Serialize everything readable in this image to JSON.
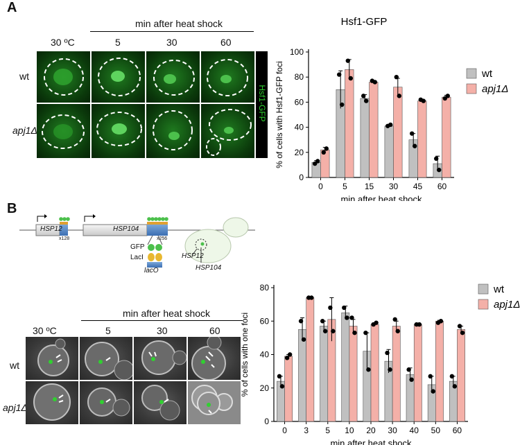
{
  "panelA": {
    "letter": "A",
    "header": "min after heat shock",
    "cols": [
      "30 ºC",
      "5",
      "30",
      "60"
    ],
    "rows": [
      "wt",
      "apj1Δ"
    ],
    "channel": "Hsf1-GFP",
    "colors": {
      "wt": "#c0c0c0",
      "apj1": "#f4b0a8"
    }
  },
  "panelB": {
    "letter": "B",
    "header": "min after heat shock",
    "cols": [
      "30 ºC",
      "5",
      "30",
      "60"
    ],
    "rows": [
      "wt",
      "apj1Δ"
    ],
    "schematic": {
      "gene1": "HSP12",
      "gene1_count": "x128",
      "gene2": "HSP104",
      "gene2_count": "x256",
      "gfp": "GFP",
      "laci": "LacI",
      "laco": "lacO",
      "cell_label1": "HSP12",
      "cell_label2": "HSP104"
    }
  },
  "chart_data": [
    {
      "type": "bar",
      "title": "Hsf1-GFP",
      "xlabel": "min after heat shock",
      "ylabel": "% of cells with Hsf1-GFP foci",
      "categories": [
        "0",
        "5",
        "15",
        "30",
        "45",
        "60"
      ],
      "ylim": [
        0,
        100
      ],
      "yticks": [
        0,
        20,
        40,
        60,
        80,
        100
      ],
      "legend": "top-right",
      "series": [
        {
          "name": "wt",
          "values": [
            12,
            70,
            63,
            41,
            30,
            11
          ],
          "err": [
            1.5,
            15,
            3,
            0.5,
            5,
            6
          ],
          "points": [
            [
              11,
              13
            ],
            [
              82,
              58
            ],
            [
              65,
              61
            ],
            [
              41,
              42
            ],
            [
              35,
              25
            ],
            [
              15,
              6
            ]
          ]
        },
        {
          "name": "apj1Δ",
          "values": [
            22,
            86,
            76,
            72,
            61,
            64
          ],
          "err": [
            2,
            8,
            1,
            7,
            1,
            1.5
          ],
          "points": [
            [
              20,
              23
            ],
            [
              93,
              79
            ],
            [
              77,
              76
            ],
            [
              80,
              65
            ],
            [
              62,
              61
            ],
            [
              63,
              65
            ]
          ]
        }
      ]
    },
    {
      "type": "bar",
      "title": "",
      "xlabel": "min after heat shock",
      "ylabel": "% of cells with one foci",
      "categories": [
        "0",
        "3",
        "5",
        "10",
        "20",
        "30",
        "40",
        "50",
        "60"
      ],
      "ylim": [
        0,
        80
      ],
      "yticks": [
        0,
        20,
        40,
        60,
        80
      ],
      "legend": "top-right",
      "series": [
        {
          "name": "wt",
          "values": [
            24,
            55,
            57,
            65,
            42,
            36,
            28,
            22,
            24
          ],
          "err": [
            3,
            7,
            3,
            4,
            11,
            7,
            4,
            5,
            3
          ],
          "points": [
            [
              27,
              21
            ],
            [
              60,
              49
            ],
            [
              60,
              54
            ],
            [
              68,
              62
            ],
            [
              53,
              31
            ],
            [
              41,
              31
            ],
            [
              31,
              25
            ],
            [
              27,
              18
            ],
            [
              27,
              21
            ]
          ]
        },
        {
          "name": "apj1Δ",
          "values": [
            39,
            74,
            61,
            57,
            58,
            57,
            58,
            60,
            55
          ],
          "err": [
            1,
            0.5,
            13,
            4,
            1,
            3,
            0.5,
            0.5,
            2
          ],
          "points": [
            [
              38,
              40
            ],
            [
              74,
              74
            ],
            [
              68,
              54
            ],
            [
              62,
              53
            ],
            [
              58,
              59
            ],
            [
              61,
              54
            ],
            [
              58,
              58
            ],
            [
              59,
              60
            ],
            [
              57,
              53
            ]
          ]
        }
      ]
    }
  ]
}
